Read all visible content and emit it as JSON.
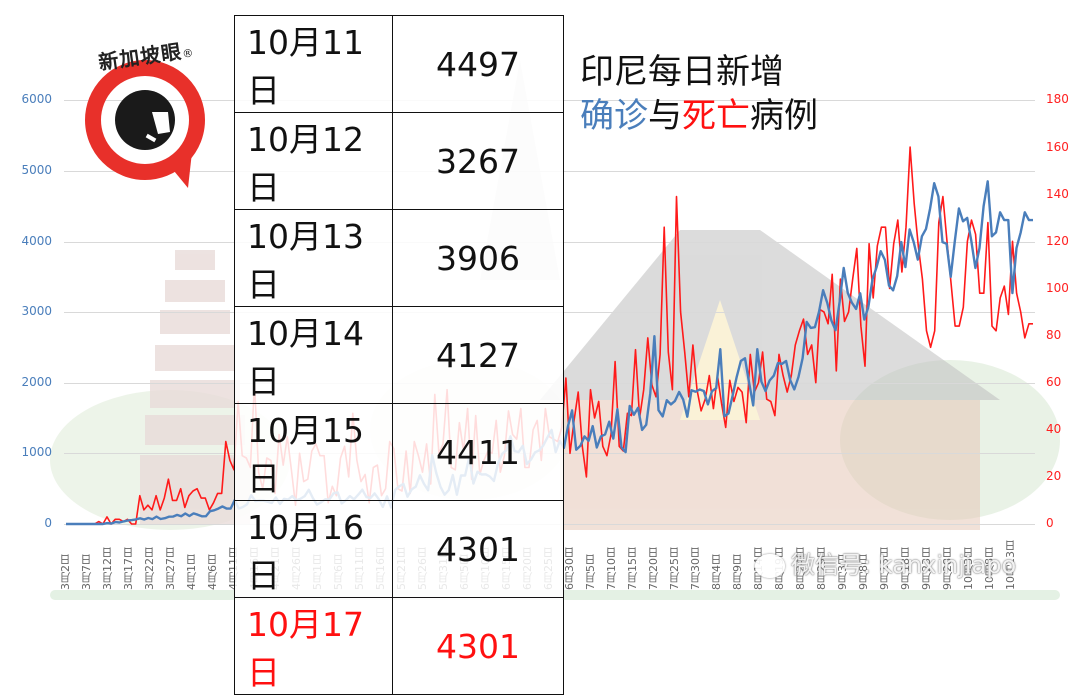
{
  "logo": {
    "text": "新加坡眼",
    "registered": "®"
  },
  "title": {
    "line1": "印尼每日新增",
    "line2_part1": "确诊",
    "line2_part2": "与",
    "line2_part3": "死亡",
    "line2_part4": "病例"
  },
  "table": {
    "rows": [
      {
        "date": "10月11日",
        "value": "4497"
      },
      {
        "date": "10月12日",
        "value": "3267"
      },
      {
        "date": "10月13日",
        "value": "3906"
      },
      {
        "date": "10月14日",
        "value": "4127"
      },
      {
        "date": "10月15日",
        "value": "4411"
      },
      {
        "date": "10月16日",
        "value": "4301"
      },
      {
        "date": "10月17日",
        "value": "4301",
        "highlight": true
      }
    ]
  },
  "watermark": {
    "text": "微信号: kanxinjiapo"
  },
  "colors": {
    "confirmed": "#4a7ebb",
    "deaths": "#ff1a1a",
    "left_axis": "#4a7ebb",
    "right_axis": "#ff2020",
    "grid": "#d9d9d9"
  },
  "chart_data": {
    "type": "line",
    "title": "印尼每日新增确诊与死亡病例",
    "xlabel": "",
    "ylabel_left": "确诊",
    "ylabel_right": "死亡",
    "ylim_left": [
      0,
      6000
    ],
    "ylim_right": [
      0,
      180
    ],
    "yticks_left": [
      "0",
      "1000",
      "2000",
      "3000",
      "4000",
      "5000",
      "6000"
    ],
    "yticks_right": [
      "0",
      "20",
      "40",
      "60",
      "80",
      "100",
      "120",
      "140",
      "160",
      "180"
    ],
    "grid": true,
    "legend": "none",
    "x_ticks": [
      "3月2日",
      "3月7日",
      "3月12日",
      "3月17日",
      "3月22日",
      "3月27日",
      "4月1日",
      "4月6日",
      "4月11日",
      "4月16日",
      "4月21日",
      "4月26日",
      "5月1日",
      "5月6日",
      "5月11日",
      "5月16日",
      "5月21日",
      "5月26日",
      "5月31日",
      "6月5日",
      "6月10日",
      "6月15日",
      "6月20日",
      "6月25日",
      "6月30日",
      "7月5日",
      "7月10日",
      "7月15日",
      "7月20日",
      "7月25日",
      "7月30日",
      "8月4日",
      "8月9日",
      "8月14日",
      "8月19日",
      "8月24日",
      "8月29日",
      "9月3日",
      "9月8日",
      "9月13日",
      "9月18日",
      "9月23日",
      "9月28日",
      "10月3日",
      "10月8日",
      "10月13日"
    ],
    "x_start": "3月2日",
    "x_end": "10月17日",
    "series": [
      {
        "name": "确诊",
        "axis": "left",
        "color": "#4a7ebb",
        "values": [
          0,
          0,
          0,
          0,
          0,
          0,
          0,
          0,
          2,
          0,
          13,
          7,
          27,
          21,
          37,
          50,
          55,
          65,
          81,
          64,
          85,
          70,
          105,
          71,
          82,
          104,
          105,
          129,
          109,
          149,
          113,
          150,
          131,
          109,
          111,
          181,
          194,
          218,
          247,
          219,
          218,
          337,
          219,
          240,
          280,
          407,
          325,
          331,
          330,
          316,
          297,
          375,
          283,
          357,
          347,
          395,
          337,
          357,
          395,
          484,
          367,
          275,
          307,
          349,
          347,
          433,
          448,
          292,
          336,
          395,
          349,
          415,
          485,
          381,
          369,
          433,
          352,
          242,
          390,
          233,
          484,
          533,
          568,
          387,
          490,
          529,
          689,
          568,
          478,
          973,
          720,
          526,
          415,
          479,
          693,
          415,
          686,
          687,
          949,
          572,
          740,
          700,
          703,
          672,
          609,
          862,
          993,
          1043,
          1241,
          1031,
          1017,
          1106,
          848,
          913,
          1014,
          1041,
          1111,
          1226,
          1331,
          1017,
          1178,
          1077,
          1385,
          1607,
          1051,
          1106,
          1240,
          1178,
          1385,
          1082,
          1240,
          1268,
          1447,
          1209,
          1624,
          1086,
          1018,
          1671,
          1545,
          1643,
          1331,
          1404,
          1853,
          2657,
          1611,
          1522,
          1752,
          1693,
          1742,
          1868,
          1761,
          1519,
          1893,
          1872,
          1904,
          1882,
          1693,
          1879,
          1923,
          2473,
          1525,
          1564,
          1815,
          2081,
          2307,
          2345,
          1999,
          1679,
          2473,
          2014,
          1882,
          2031,
          2098,
          2277,
          2266,
          2307,
          2037,
          1905,
          2081,
          2345,
          2858,
          2775,
          2785,
          3003,
          3308,
          3128,
          2880,
          2743,
          3141,
          3622,
          3269,
          3131,
          3044,
          3264,
          2892,
          3075,
          3464,
          3636,
          3861,
          3737,
          3373,
          3307,
          3509,
          3989,
          3636,
          4168,
          3989,
          3741,
          4071,
          4176,
          4465,
          4823,
          4634,
          3989,
          3966,
          3497,
          4002,
          4465,
          4284,
          4331,
          4007,
          3622,
          3906,
          4497,
          4850,
          4071,
          4127,
          4411,
          4301,
          4301,
          3267,
          3906,
          4127,
          4411,
          4301,
          4301
        ]
      },
      {
        "name": "死亡",
        "axis": "right",
        "color": "#ff1a1a",
        "values": [
          0,
          0,
          0,
          0,
          0,
          0,
          0,
          0,
          1,
          0,
          3,
          0,
          2,
          2,
          1,
          2,
          0,
          0,
          12,
          6,
          8,
          6,
          12,
          6,
          11,
          19,
          10,
          10,
          15,
          7,
          12,
          14,
          15,
          11,
          11,
          6,
          9,
          13,
          13,
          35,
          27,
          23,
          52,
          29,
          28,
          24,
          60,
          22,
          15,
          28,
          27,
          13,
          38,
          25,
          37,
          23,
          8,
          30,
          18,
          19,
          31,
          34,
          29,
          29,
          9,
          16,
          12,
          28,
          33,
          20,
          47,
          27,
          18,
          21,
          9,
          24,
          25,
          12,
          15,
          35,
          32,
          15,
          14,
          31,
          13,
          35,
          29,
          22,
          34,
          17,
          55,
          30,
          34,
          57,
          24,
          23,
          43,
          31,
          49,
          19,
          46,
          21,
          27,
          31,
          30,
          44,
          22,
          29,
          48,
          38,
          36,
          49,
          24,
          24,
          40,
          44,
          27,
          49,
          37,
          36,
          35,
          41,
          62,
          30,
          44,
          56,
          33,
          20,
          57,
          45,
          52,
          33,
          29,
          38,
          69,
          33,
          31,
          47,
          46,
          74,
          45,
          57,
          79,
          59,
          54,
          72,
          126,
          73,
          57,
          139,
          90,
          73,
          54,
          76,
          57,
          48,
          53,
          63,
          49,
          63,
          51,
          41,
          61,
          52,
          58,
          56,
          43,
          72,
          56,
          60,
          73,
          53,
          52,
          46,
          72,
          63,
          56,
          63,
          76,
          82,
          87,
          72,
          76,
          60,
          91,
          90,
          85,
          106,
          65,
          104,
          86,
          90,
          104,
          117,
          84,
          67,
          119,
          96,
          118,
          126,
          126,
          100,
          119,
          129,
          107,
          126,
          160,
          136,
          118,
          104,
          82,
          75,
          82,
          128,
          139,
          120,
          102,
          84,
          84,
          92,
          120,
          129,
          123,
          98,
          98,
          128,
          84,
          82,
          96,
          101,
          89,
          120,
          98,
          90,
          79,
          85,
          85
        ]
      }
    ],
    "table_values": [
      {
        "date": "10月11日",
        "confirmed": 4497
      },
      {
        "date": "10月12日",
        "confirmed": 3267
      },
      {
        "date": "10月13日",
        "confirmed": 3906
      },
      {
        "date": "10月14日",
        "confirmed": 4127
      },
      {
        "date": "10月15日",
        "confirmed": 4411
      },
      {
        "date": "10月16日",
        "confirmed": 4301
      },
      {
        "date": "10月17日",
        "confirmed": 4301
      }
    ]
  }
}
